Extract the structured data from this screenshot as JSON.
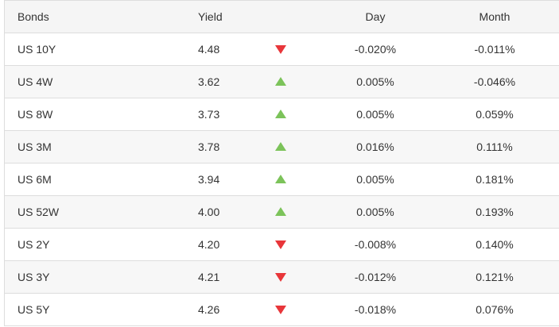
{
  "table": {
    "header": [
      "Bonds",
      "Yield",
      "Day",
      "Month"
    ],
    "rows": [
      [
        "US 10Y",
        "4.48",
        "-0.020%",
        "-0.011%"
      ],
      [
        "US 4W",
        "3.62",
        "0.005%",
        "-0.046%"
      ],
      [
        "US 8W",
        "3.73",
        "0.005%",
        "0.059%"
      ],
      [
        "US 3M",
        "3.78",
        "0.016%",
        "0.111%"
      ],
      [
        "US 6M",
        "3.94",
        "0.005%",
        "0.181%"
      ],
      [
        "US 52W",
        "4.00",
        "0.005%",
        "0.193%"
      ],
      [
        "US 2Y",
        "4.20",
        "-0.008%",
        "0.140%"
      ],
      [
        "US 3Y",
        "4.21",
        "-0.012%",
        "0.121%"
      ],
      [
        "US 5Y",
        "4.26",
        "-0.018%",
        "0.076%"
      ]
    ]
  }
}
